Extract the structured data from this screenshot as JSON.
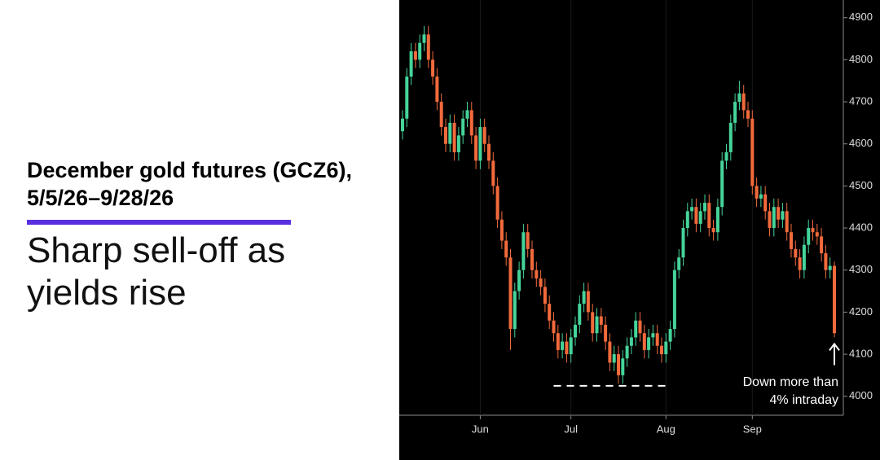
{
  "chart_data": {
    "type": "candlestick",
    "title": "December gold futures (GCZ6), 5/5/26–9/28/26",
    "subtitle": "Sharp sell-off as yields rise",
    "annotation": [
      "Down more than",
      "4% intraday"
    ],
    "up_color": "#45d49a",
    "down_color": "#f26a3c",
    "support_level": 4025,
    "categories": [
      null,
      null,
      null,
      null,
      null,
      null,
      null,
      null,
      null,
      null,
      null,
      null,
      null,
      null,
      null,
      null,
      null,
      null,
      "Jun",
      null,
      null,
      null,
      null,
      null,
      null,
      null,
      null,
      null,
      null,
      null,
      null,
      null,
      null,
      null,
      null,
      null,
      null,
      null,
      null,
      "Jul",
      null,
      null,
      null,
      null,
      null,
      null,
      null,
      null,
      null,
      null,
      null,
      null,
      null,
      null,
      null,
      null,
      null,
      null,
      null,
      null,
      null,
      "Aug",
      null,
      null,
      null,
      null,
      null,
      null,
      null,
      null,
      null,
      null,
      null,
      null,
      null,
      null,
      null,
      null,
      null,
      null,
      null,
      "Sep",
      null,
      null,
      null,
      null,
      null,
      null,
      null,
      null,
      null,
      null,
      null,
      null,
      null,
      null,
      null,
      null,
      null,
      null,
      null
    ],
    "open": [
      4630,
      4660,
      4760,
      4820,
      4800,
      4840,
      4860,
      4800,
      4760,
      4700,
      4640,
      4600,
      4650,
      4580,
      4620,
      4660,
      4680,
      4620,
      4560,
      4640,
      4600,
      4560,
      4500,
      4420,
      4370,
      4330,
      4160,
      4250,
      4300,
      4390,
      4350,
      4300,
      4280,
      4260,
      4220,
      4180,
      4150,
      4110,
      4130,
      4100,
      4140,
      4170,
      4220,
      4250,
      4200,
      4150,
      4190,
      4170,
      4130,
      4080,
      4100,
      4050,
      4090,
      4120,
      4140,
      4180,
      4150,
      4110,
      4140,
      4150,
      4120,
      4100,
      4130,
      4160,
      4300,
      4330,
      4400,
      4440,
      4450,
      4410,
      4440,
      4460,
      4400,
      4390,
      4450,
      4560,
      4580,
      4650,
      4700,
      4720,
      4680,
      4660,
      4500,
      4470,
      4480,
      4440,
      4400,
      4450,
      4420,
      4440,
      4390,
      4350,
      4330,
      4300,
      4360,
      4400,
      4390,
      4380,
      4340,
      4300,
      4310
    ],
    "high": [
      4680,
      4780,
      4840,
      4840,
      4860,
      4880,
      4880,
      4820,
      4780,
      4720,
      4660,
      4670,
      4670,
      4640,
      4680,
      4700,
      4700,
      4640,
      4660,
      4660,
      4620,
      4580,
      4520,
      4440,
      4390,
      4350,
      4270,
      4320,
      4410,
      4410,
      4370,
      4320,
      4300,
      4280,
      4240,
      4200,
      4170,
      4150,
      4150,
      4160,
      4190,
      4240,
      4270,
      4270,
      4220,
      4210,
      4210,
      4190,
      4150,
      4120,
      4120,
      4110,
      4140,
      4160,
      4200,
      4200,
      4170,
      4160,
      4170,
      4170,
      4140,
      4150,
      4180,
      4320,
      4350,
      4420,
      4460,
      4470,
      4470,
      4460,
      4480,
      4480,
      4420,
      4470,
      4580,
      4600,
      4670,
      4720,
      4750,
      4740,
      4700,
      4680,
      4520,
      4500,
      4500,
      4460,
      4470,
      4470,
      4460,
      4460,
      4410,
      4370,
      4350,
      4380,
      4420,
      4420,
      4410,
      4400,
      4360,
      4330,
      4320
    ],
    "low": [
      4610,
      4640,
      4740,
      4780,
      4780,
      4820,
      4780,
      4740,
      4680,
      4620,
      4580,
      4580,
      4560,
      4560,
      4600,
      4640,
      4600,
      4540,
      4540,
      4580,
      4540,
      4480,
      4400,
      4350,
      4310,
      4110,
      4140,
      4230,
      4280,
      4330,
      4280,
      4260,
      4240,
      4200,
      4160,
      4130,
      4090,
      4090,
      4080,
      4080,
      4120,
      4150,
      4200,
      4180,
      4130,
      4130,
      4150,
      4110,
      4060,
      4060,
      4030,
      4030,
      4070,
      4100,
      4120,
      4130,
      4090,
      4090,
      4120,
      4100,
      4080,
      4080,
      4110,
      4140,
      4280,
      4310,
      4380,
      4420,
      4390,
      4390,
      4420,
      4380,
      4370,
      4370,
      4430,
      4540,
      4560,
      4630,
      4680,
      4660,
      4640,
      4480,
      4450,
      4450,
      4420,
      4380,
      4380,
      4400,
      4400,
      4370,
      4330,
      4310,
      4280,
      4280,
      4340,
      4370,
      4360,
      4320,
      4280,
      4280,
      4140
    ],
    "close": [
      4660,
      4760,
      4820,
      4800,
      4840,
      4860,
      4800,
      4760,
      4700,
      4640,
      4600,
      4650,
      4580,
      4620,
      4660,
      4680,
      4620,
      4560,
      4640,
      4600,
      4560,
      4500,
      4420,
      4370,
      4330,
      4160,
      4250,
      4300,
      4390,
      4350,
      4300,
      4280,
      4260,
      4220,
      4180,
      4150,
      4110,
      4130,
      4100,
      4140,
      4170,
      4220,
      4250,
      4200,
      4150,
      4190,
      4170,
      4130,
      4080,
      4100,
      4050,
      4090,
      4120,
      4140,
      4180,
      4150,
      4110,
      4140,
      4150,
      4120,
      4100,
      4130,
      4160,
      4300,
      4330,
      4400,
      4440,
      4450,
      4410,
      4440,
      4460,
      4400,
      4390,
      4450,
      4560,
      4580,
      4650,
      4700,
      4720,
      4680,
      4660,
      4500,
      4470,
      4480,
      4440,
      4400,
      4450,
      4420,
      4440,
      4390,
      4350,
      4330,
      4300,
      4360,
      4400,
      4390,
      4380,
      4340,
      4300,
      4310,
      4150
    ],
    "ylim": [
      3955,
      4942
    ],
    "yticks": [
      4000,
      4100,
      4200,
      4300,
      4400,
      4500,
      4600,
      4700,
      4800,
      4900
    ]
  }
}
